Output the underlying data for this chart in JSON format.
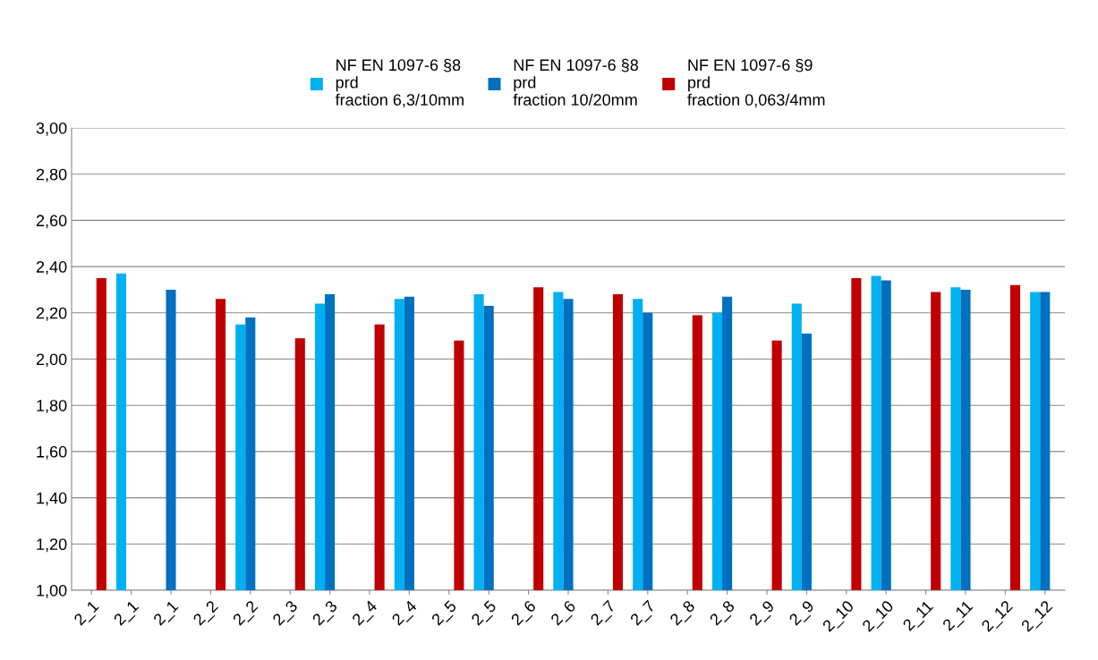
{
  "chart_data": {
    "type": "bar",
    "categories": [
      "2_1",
      "2_1",
      "2_1",
      "2_2",
      "2_2",
      "2_3",
      "2_3",
      "2_4",
      "2_4",
      "2_5",
      "2_5",
      "2_6",
      "2_6",
      "2_7",
      "2_7",
      "2_8",
      "2_8",
      "2_9",
      "2_9",
      "2_10",
      "2_10",
      "2_11",
      "2_11",
      "2_12",
      "2_12"
    ],
    "series": [
      {
        "name": "NF EN 1097-6 §8\nprd\nfraction 6,3/10mm",
        "color": "#00b0f0",
        "values": [
          null,
          2.37,
          null,
          null,
          2.15,
          null,
          2.24,
          null,
          2.26,
          null,
          2.28,
          null,
          2.29,
          null,
          2.26,
          null,
          2.2,
          null,
          2.24,
          null,
          2.36,
          null,
          2.31,
          null,
          2.29
        ]
      },
      {
        "name": "NF EN 1097-6 §8\nprd\nfraction 10/20mm",
        "color": "#0070c0",
        "values": [
          null,
          null,
          2.3,
          null,
          2.18,
          null,
          2.28,
          null,
          2.27,
          null,
          2.23,
          null,
          2.26,
          null,
          2.2,
          null,
          2.27,
          null,
          2.11,
          null,
          2.34,
          null,
          2.3,
          null,
          2.29
        ]
      },
      {
        "name": "NF EN 1097-6 §9\nprd\nfraction 0,063/4mm",
        "color": "#c00000",
        "values": [
          2.35,
          null,
          null,
          2.26,
          null,
          2.09,
          null,
          2.15,
          null,
          2.08,
          null,
          2.31,
          null,
          2.28,
          null,
          2.19,
          null,
          2.08,
          null,
          2.35,
          null,
          2.29,
          null,
          2.32,
          null
        ]
      }
    ],
    "ylim": [
      1.0,
      3.0
    ],
    "yticks": [
      {
        "value": 1.0,
        "label": "1,00"
      },
      {
        "value": 1.2,
        "label": "1,20"
      },
      {
        "value": 1.4,
        "label": "1,40"
      },
      {
        "value": 1.6,
        "label": "1,60"
      },
      {
        "value": 1.8,
        "label": "1,80"
      },
      {
        "value": 2.0,
        "label": "2,00"
      },
      {
        "value": 2.2,
        "label": "2,20"
      },
      {
        "value": 2.4,
        "label": "2,40"
      },
      {
        "value": 2.6,
        "label": "2,60"
      },
      {
        "value": 2.8,
        "label": "2,80"
      },
      {
        "value": 3.0,
        "label": "3,00"
      }
    ],
    "grid": "y",
    "legend": "top"
  }
}
